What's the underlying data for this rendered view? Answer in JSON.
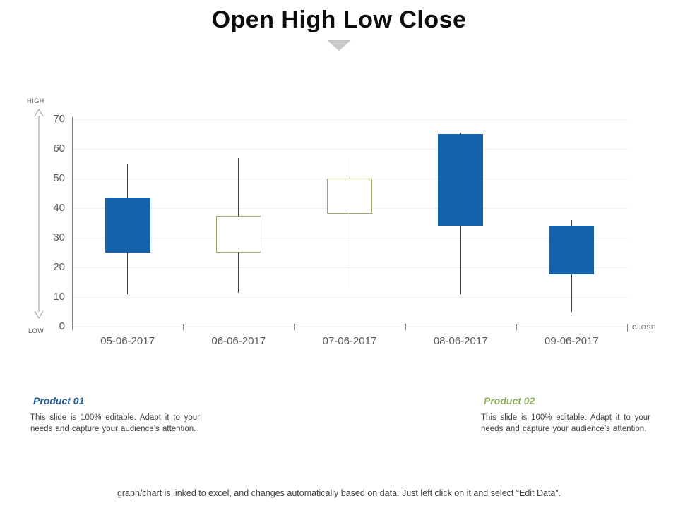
{
  "title": "Open High Low Close",
  "axis_annotations": {
    "high": "HIGH",
    "low": "LOW",
    "close": "CLOSE"
  },
  "chart_data": {
    "type": "candlestick",
    "title": "Open High Low Close",
    "categories": [
      "05-06-2017",
      "06-06-2017",
      "07-06-2017",
      "08-06-2017",
      "09-06-2017"
    ],
    "ohlc": [
      {
        "date": "05-06-2017",
        "open": 43.5,
        "high": 55,
        "low": 11,
        "close": 25,
        "direction": "down"
      },
      {
        "date": "06-06-2017",
        "open": 25,
        "high": 57,
        "low": 11.5,
        "close": 37.5,
        "direction": "up"
      },
      {
        "date": "07-06-2017",
        "open": 38,
        "high": 57,
        "low": 13,
        "close": 50,
        "direction": "up"
      },
      {
        "date": "08-06-2017",
        "open": 65,
        "high": 65.5,
        "low": 11,
        "close": 34,
        "direction": "down"
      },
      {
        "date": "09-06-2017",
        "open": 34,
        "high": 36,
        "low": 5,
        "close": 17.5,
        "direction": "down"
      }
    ],
    "ylim": [
      0,
      70
    ],
    "y_ticks": [
      0,
      10,
      20,
      30,
      40,
      50,
      60,
      70
    ],
    "grid": true,
    "legend": "none",
    "colors": {
      "down_fill": "#1561ab",
      "up_fill": "#ffffff",
      "up_border": "#9aa966",
      "wick": "#404040",
      "axis": "#808080",
      "gridline": "#f1f1f1",
      "tick_text": "#595959"
    }
  },
  "products": [
    {
      "name": "Product 01",
      "accent_color": "#235f97",
      "description": "This slide is 100% editable. Adapt it to your needs and capture your audience’s attention."
    },
    {
      "name": "Product 02",
      "accent_color": "#8fb15c",
      "description": "This slide is 100% editable. Adapt it to your needs and capture your audience’s attention."
    }
  ],
  "footer": "graph/chart is linked to excel, and changes automatically based on data. Just left click on it and select “Edit Data”."
}
